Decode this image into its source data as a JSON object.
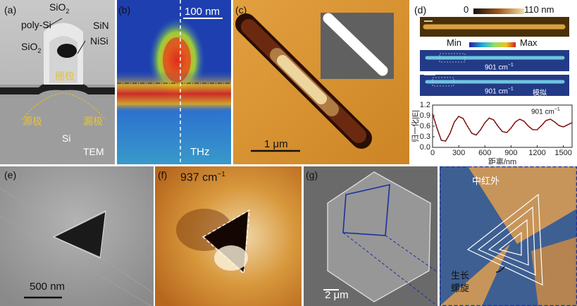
{
  "panel_labels": {
    "a": "(a)",
    "b": "(b)",
    "c": "(c)",
    "d": "(d)",
    "e": "(e)",
    "f": "(f)",
    "g": "(g)"
  },
  "panel_a": {
    "sio2_top": "SiO",
    "sio2_top_sub": "2",
    "poly_si": "poly-Si",
    "sin": "SiN",
    "sio2_left": "SiO",
    "sio2_left_sub": "2",
    "nisi": "NiSi",
    "gate": "栅极",
    "source": "源极",
    "drain": "漏极",
    "si": "Si",
    "tem": "TEM"
  },
  "panel_b": {
    "scale_label": "100 nm",
    "mode": "THz"
  },
  "panel_c": {
    "scale_label": "1 μm"
  },
  "panel_d": {
    "height_scale": {
      "min": "0",
      "max": "110 nm"
    },
    "signal_scale": {
      "min": "Min",
      "max": "Max"
    },
    "band2_label": "901 cm",
    "band2_sup": "−1",
    "band3_label": "901 cm",
    "band3_sup": "−1",
    "band3_tag": "模拟",
    "plot_inset": "901 cm",
    "plot_inset_sup": "−1"
  },
  "panel_e": {
    "scale_label": "500 nm"
  },
  "panel_f": {
    "wavenumber": "937 cm",
    "wavenumber_sup": "−1"
  },
  "panel_g": {
    "scale_label": "2 μm",
    "mode": "中红外",
    "spiral_line1": "生长",
    "spiral_line2": "螺旋"
  },
  "colors": {
    "afm_orange": "#d28a2e",
    "nearfield_blue": "#3b5a8a",
    "gold_text": "#e6c23a",
    "plot_line": "#b11e1e"
  },
  "chart_data": {
    "type": "line",
    "xlabel": "距离/nm",
    "ylabel": "归一化|E|",
    "xlim": [
      0,
      1600
    ],
    "ylim": [
      0,
      1.2
    ],
    "xticks": [
      0,
      300,
      600,
      900,
      1200,
      1500
    ],
    "yticks": [
      0,
      0.3,
      0.6,
      0.9,
      1.2
    ],
    "series": [
      {
        "x": [
          0,
          50,
          100,
          150,
          200,
          250,
          300,
          350,
          400,
          450,
          500,
          550,
          600,
          650,
          700,
          750,
          800,
          850,
          900,
          950,
          1000,
          1050,
          1100,
          1150,
          1200,
          1250,
          1300,
          1350,
          1400,
          1450,
          1500,
          1550,
          1600
        ],
        "values": [
          0.95,
          0.55,
          0.2,
          0.18,
          0.4,
          0.72,
          0.88,
          0.82,
          0.6,
          0.4,
          0.35,
          0.5,
          0.7,
          0.83,
          0.78,
          0.6,
          0.45,
          0.42,
          0.55,
          0.72,
          0.8,
          0.74,
          0.6,
          0.5,
          0.5,
          0.62,
          0.76,
          0.8,
          0.72,
          0.62,
          0.58,
          0.64,
          0.7
        ]
      }
    ]
  }
}
